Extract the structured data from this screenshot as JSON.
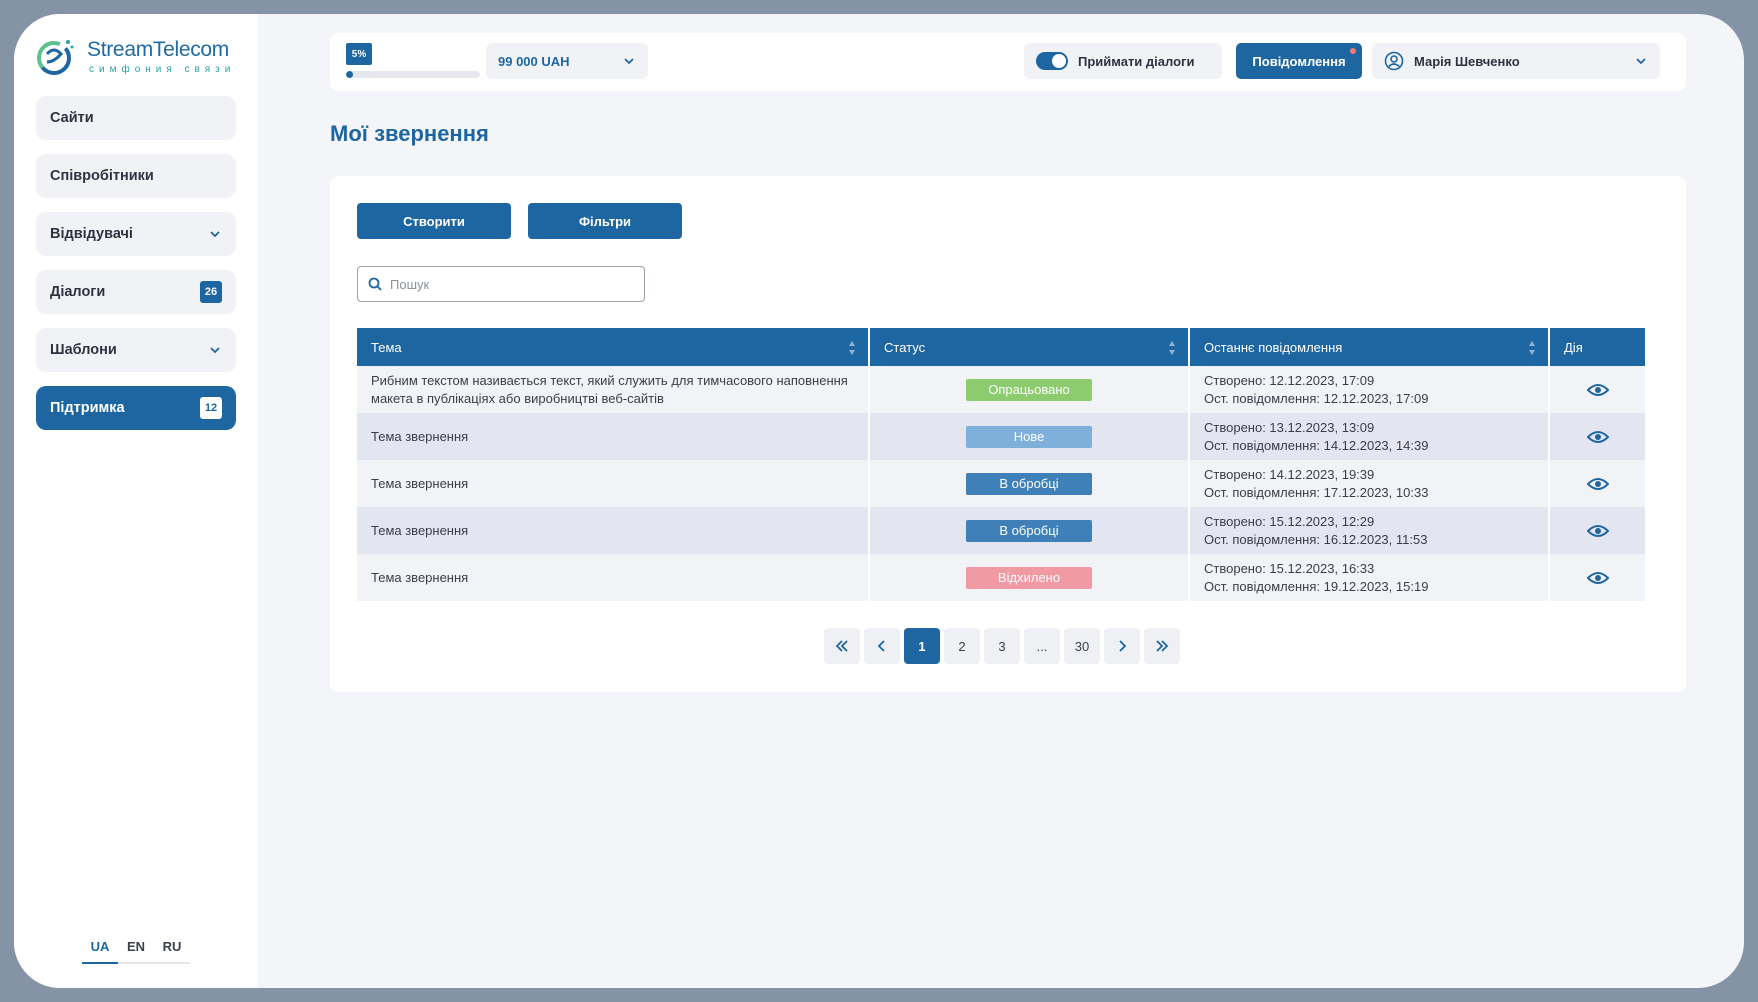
{
  "brand": {
    "name": "StreamTelecom",
    "tagline": "симфония связи"
  },
  "sidebar": {
    "items": [
      {
        "label": "Сайти",
        "chevron": false,
        "badge": null,
        "active": false
      },
      {
        "label": "Співробітники",
        "chevron": false,
        "badge": null,
        "active": false
      },
      {
        "label": "Відвідувачі",
        "chevron": true,
        "badge": null,
        "active": false
      },
      {
        "label": "Діалоги",
        "chevron": false,
        "badge": "26",
        "active": false
      },
      {
        "label": "Шаблони",
        "chevron": true,
        "badge": null,
        "active": false
      },
      {
        "label": "Підтримка",
        "chevron": false,
        "badge": "12",
        "active": true
      }
    ],
    "languages": [
      "UA",
      "EN",
      "RU"
    ],
    "active_language": "UA"
  },
  "topbar": {
    "progress_label": "5%",
    "progress_value": 0.05,
    "balance": "99 000 UAH",
    "accept_dialogs_label": "Приймати діалоги",
    "accept_dialogs_on": true,
    "notifications_label": "Повідомлення",
    "user_name": "Марія Шевченко"
  },
  "page": {
    "title": "Мої звернення"
  },
  "actions": {
    "create_label": "Створити",
    "filters_label": "Фільтри"
  },
  "search": {
    "placeholder": "Пошук",
    "value": ""
  },
  "table": {
    "columns": [
      "Тема",
      "Статус",
      "Останнє повідомлення",
      "Дія"
    ],
    "rows": [
      {
        "topic": "Рибним текстом називається текст, який служить для тимчасового наповнення макета в публікаціях або виробництві веб-сайтів",
        "status": "Опрацьовано",
        "created": "Створено: 12.12.2023, 17:09",
        "last": "Ост. повідомлення: 12.12.2023, 17:09"
      },
      {
        "topic": "Тема звернення",
        "status": "Нове",
        "created": "Створено: 13.12.2023, 13:09",
        "last": "Ост. повідомлення: 14.12.2023, 14:39"
      },
      {
        "topic": "Тема звернення",
        "status": "В обробці",
        "created": "Створено: 14.12.2023, 19:39",
        "last": "Ост. повідомлення: 17.12.2023, 10:33"
      },
      {
        "topic": "Тема звернення",
        "status": "В обробці",
        "created": "Створено: 15.12.2023, 12:29",
        "last": "Ост. повідомлення: 16.12.2023, 11:53"
      },
      {
        "topic": "Тема звернення",
        "status": "Відхилено",
        "created": "Створено: 15.12.2023, 16:33",
        "last": "Ост. повідомлення: 19.12.2023, 15:19"
      }
    ],
    "status_colors": {
      "Опрацьовано": "#8ccb6e",
      "Нове": "#7fb0dc",
      "В обробці": "#3f80b8",
      "Відхилено": "#f29aa3"
    }
  },
  "pagination": {
    "first": "«",
    "prev": "‹",
    "pages": [
      "1",
      "2",
      "3",
      "...",
      "30"
    ],
    "current": "1",
    "next": "›",
    "last": "»"
  },
  "colors": {
    "accent": "#1e66a2",
    "background": "#f4f5f9",
    "notification_dot": "#f07a7a"
  }
}
